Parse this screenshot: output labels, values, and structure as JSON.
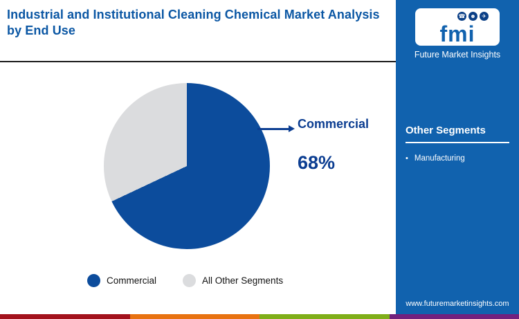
{
  "header": {
    "title": "Industrial and Institutional Cleaning Chemical Market Analysis by End Use"
  },
  "logo": {
    "text": "fmi",
    "brand": "Future Market Insights",
    "glyphs": [
      "☎",
      "☻",
      "✈"
    ]
  },
  "sidebar": {
    "section_title": "Other Segments",
    "items": [
      {
        "label": "Manufacturing"
      }
    ],
    "website": "www.futuremarketinsights.com"
  },
  "chart_data": {
    "type": "pie",
    "title": "Industrial and Institutional Cleaning Chemical Market Analysis by End Use",
    "slices": [
      {
        "label": "Commercial",
        "value": 68,
        "color": "#0c4c9c"
      },
      {
        "label": "All Other Segments",
        "value": 32,
        "color": "#dbdcde"
      }
    ],
    "callout": {
      "label": "Commercial",
      "value_text": "68%"
    },
    "legend_position": "bottom",
    "start_angle_deg": 0,
    "direction": "clockwise"
  },
  "colors": {
    "accent_blue": "#0b3d91",
    "title_blue": "#0b57a4",
    "sidebar_blue": "#1162ae",
    "strip": [
      "#a3121d",
      "#e87211",
      "#7fae19",
      "#72217e"
    ]
  }
}
